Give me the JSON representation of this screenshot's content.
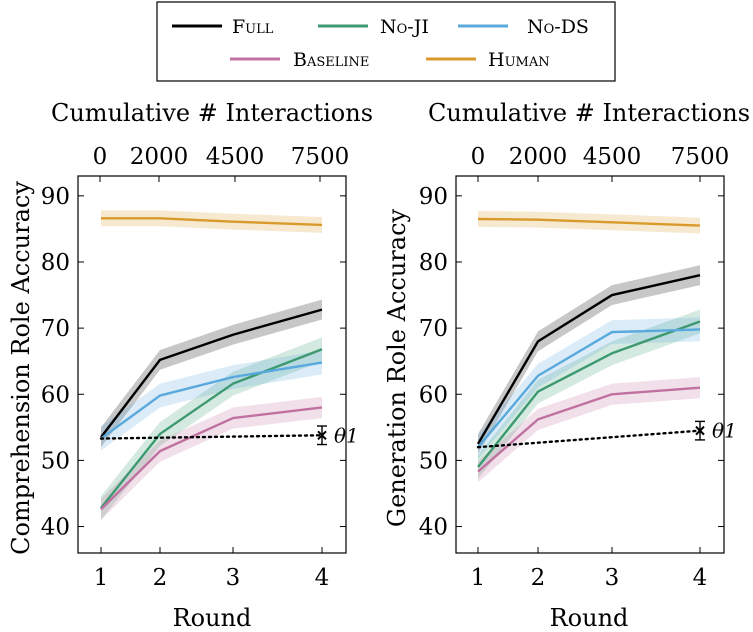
{
  "legend": {
    "items": [
      {
        "label": "Full",
        "color": "#000000"
      },
      {
        "label": "No-JI",
        "color": "#3d9970"
      },
      {
        "label": "No-DS",
        "color": "#5aa9dd"
      },
      {
        "label": "Baseline",
        "color": "#c071a0"
      },
      {
        "label": "Human",
        "color": "#d99a2b"
      }
    ]
  },
  "chart_data": [
    {
      "type": "line",
      "ylabel": "Comprehension Role Accuracy",
      "xlabel": "Round",
      "x2label": "Cumulative # Interactions",
      "x": [
        1,
        2,
        3,
        4
      ],
      "x_ticks": [
        "1",
        "2",
        "3",
        "4"
      ],
      "x2_ticks": [
        "0",
        "2000",
        "4500",
        "7500"
      ],
      "ylim": [
        36,
        93
      ],
      "y_ticks": [
        40,
        50,
        60,
        70,
        80,
        90
      ],
      "series": [
        {
          "name": "Full",
          "color": "#000000",
          "values": [
            53.5,
            65.2,
            69.0,
            72.8
          ],
          "band": 1.5
        },
        {
          "name": "No-JI",
          "color": "#3d9970",
          "values": [
            42.8,
            54.0,
            61.6,
            66.8
          ],
          "band": 1.8
        },
        {
          "name": "No-DS",
          "color": "#5aa9dd",
          "values": [
            53.3,
            59.8,
            62.6,
            64.8
          ],
          "band": 1.8
        },
        {
          "name": "Baseline",
          "color": "#c071a0",
          "values": [
            42.6,
            51.4,
            56.4,
            58.0
          ],
          "band": 1.6
        },
        {
          "name": "Human",
          "color": "#d99a2b",
          "values": [
            86.6,
            86.6,
            86.1,
            85.6
          ],
          "band": 1.2
        }
      ],
      "reference": {
        "label": "θ1",
        "from_x": 1,
        "from_y": 53.3,
        "to_x": 4,
        "to_y": 53.8,
        "err": 1.4
      }
    },
    {
      "type": "line",
      "ylabel": "Generation Role Accuracy",
      "xlabel": "Round",
      "x2label": "Cumulative # Interactions",
      "x": [
        1,
        2,
        3,
        4
      ],
      "x_ticks": [
        "1",
        "2",
        "3",
        "4"
      ],
      "x2_ticks": [
        "0",
        "2000",
        "4500",
        "7500"
      ],
      "ylim": [
        36,
        93
      ],
      "y_ticks": [
        40,
        50,
        60,
        70,
        80,
        90
      ],
      "series": [
        {
          "name": "Full",
          "color": "#000000",
          "values": [
            52.5,
            68.0,
            75.0,
            78.0
          ],
          "band": 1.5
        },
        {
          "name": "No-JI",
          "color": "#3d9970",
          "values": [
            49.0,
            60.4,
            66.2,
            71.0
          ],
          "band": 1.8
        },
        {
          "name": "No-DS",
          "color": "#5aa9dd",
          "values": [
            52.0,
            62.8,
            69.4,
            69.8
          ],
          "band": 1.8
        },
        {
          "name": "Baseline",
          "color": "#c071a0",
          "values": [
            48.3,
            56.2,
            60.0,
            61.0
          ],
          "band": 1.6
        },
        {
          "name": "Human",
          "color": "#d99a2b",
          "values": [
            86.5,
            86.4,
            86.0,
            85.5
          ],
          "band": 1.2
        }
      ],
      "reference": {
        "label": "θ1",
        "from_x": 1,
        "from_y": 52.0,
        "to_x": 4,
        "to_y": 54.5,
        "err": 1.4
      }
    }
  ]
}
